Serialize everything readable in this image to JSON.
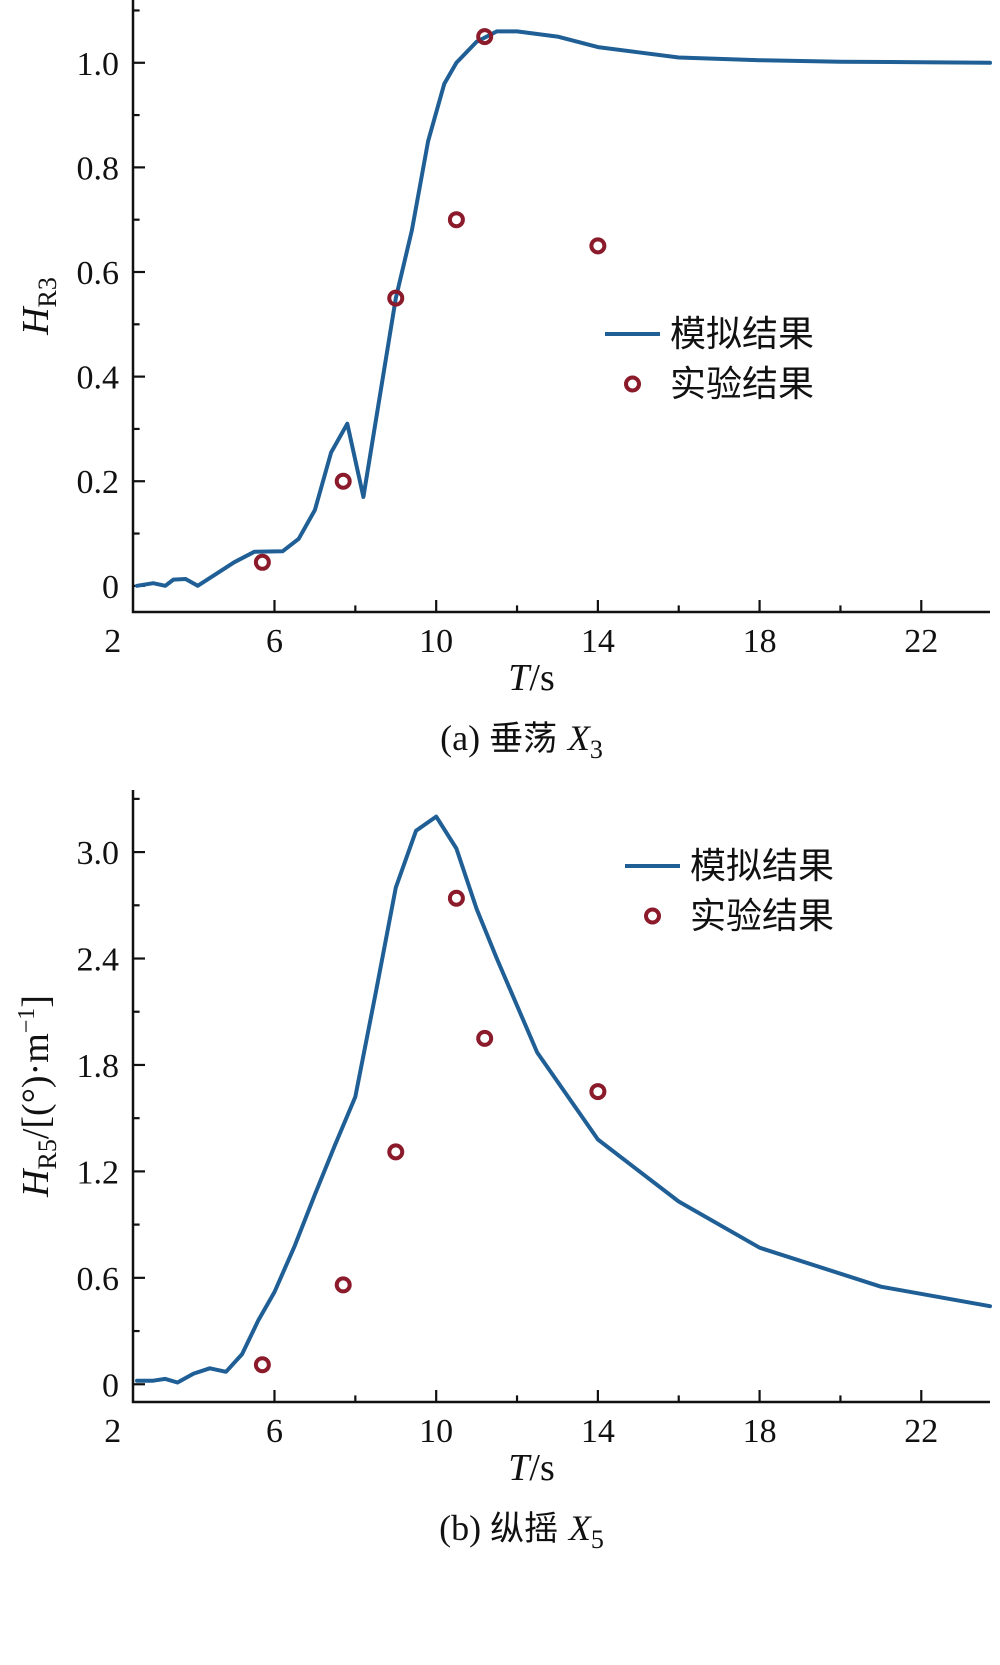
{
  "colors": {
    "simulation": "#1f5f95",
    "experiment": "#8b1a2b"
  },
  "chart_data": [
    {
      "type": "line",
      "panel": "a",
      "caption": {
        "prefix": "(a)",
        "text": "垂荡",
        "var": "X",
        "sub": "3"
      },
      "xlabel": {
        "var": "T",
        "unit": "/s"
      },
      "ylabel": {
        "var": "H",
        "sub": "R3",
        "unit": ""
      },
      "xlim": [
        2.5,
        23.7
      ],
      "ylim": [
        -0.05,
        1.12
      ],
      "xticks": [
        2,
        6,
        10,
        14,
        18,
        22
      ],
      "xtick_labels": [
        "2",
        "6",
        "10",
        "14",
        "18",
        "22"
      ],
      "yticks": [
        0,
        0.2,
        0.4,
        0.6,
        0.8,
        1.0
      ],
      "ytick_labels": [
        "0",
        "0.2",
        "0.4",
        "0.6",
        "0.8",
        "1.0"
      ],
      "legend_position": "center-right",
      "series": [
        {
          "name": "模拟结果",
          "kind": "line",
          "x": [
            2.6,
            3.0,
            3.3,
            3.5,
            3.8,
            4.1,
            4.6,
            5.0,
            5.5,
            6.2,
            6.6,
            7.0,
            7.4,
            7.8,
            8.2,
            8.6,
            9.0,
            9.4,
            9.8,
            10.2,
            10.5,
            11.0,
            11.5,
            12.0,
            13.0,
            14.0,
            15.0,
            16.0,
            18.0,
            20.0,
            22.0,
            23.7
          ],
          "y": [
            0.0,
            0.005,
            0.0,
            0.012,
            0.013,
            0.0,
            0.025,
            0.045,
            0.065,
            0.066,
            0.09,
            0.145,
            0.255,
            0.31,
            0.17,
            0.36,
            0.55,
            0.68,
            0.85,
            0.96,
            1.0,
            1.04,
            1.06,
            1.06,
            1.05,
            1.03,
            1.02,
            1.01,
            1.005,
            1.002,
            1.001,
            1.0
          ]
        },
        {
          "name": "实验结果",
          "kind": "scatter",
          "x": [
            5.7,
            7.7,
            9.0,
            10.5,
            11.2,
            14.0
          ],
          "y": [
            0.045,
            0.2,
            0.55,
            0.7,
            1.05,
            0.65
          ]
        }
      ]
    },
    {
      "type": "line",
      "panel": "b",
      "caption": {
        "prefix": "(b)",
        "text": "纵摇",
        "var": "X",
        "sub": "5"
      },
      "xlabel": {
        "var": "T",
        "unit": "/s"
      },
      "ylabel": {
        "var": "H",
        "sub": "R5",
        "unit": "/[(°)·m",
        "sup": "−1",
        "close": "]"
      },
      "xlim": [
        2.5,
        23.7
      ],
      "ylim": [
        -0.1,
        3.35
      ],
      "xticks": [
        2,
        6,
        10,
        14,
        18,
        22
      ],
      "xtick_labels": [
        "2",
        "6",
        "10",
        "14",
        "18",
        "22"
      ],
      "yticks": [
        0,
        0.6,
        1.2,
        1.8,
        2.4,
        3.0
      ],
      "ytick_labels": [
        "0",
        "0.6",
        "1.2",
        "1.8",
        "2.4",
        "3.0"
      ],
      "legend_position": "top-right",
      "series": [
        {
          "name": "模拟结果",
          "kind": "line",
          "x": [
            2.6,
            3.0,
            3.3,
            3.6,
            4.0,
            4.4,
            4.8,
            5.2,
            5.6,
            6.0,
            6.5,
            7.0,
            7.5,
            8.0,
            8.5,
            9.0,
            9.5,
            10.0,
            10.5,
            11.0,
            11.5,
            12.5,
            14.0,
            16.0,
            18.0,
            21.0,
            23.7
          ],
          "y": [
            0.02,
            0.02,
            0.03,
            0.01,
            0.06,
            0.09,
            0.07,
            0.17,
            0.36,
            0.52,
            0.78,
            1.07,
            1.35,
            1.62,
            2.2,
            2.8,
            3.12,
            3.2,
            3.02,
            2.68,
            2.4,
            1.87,
            1.38,
            1.03,
            0.77,
            0.55,
            0.44
          ]
        },
        {
          "name": "实验结果",
          "kind": "scatter",
          "x": [
            5.7,
            7.7,
            9.0,
            10.5,
            11.2,
            14.0
          ],
          "y": [
            0.11,
            0.56,
            1.31,
            2.74,
            1.95,
            1.65
          ]
        }
      ]
    }
  ]
}
